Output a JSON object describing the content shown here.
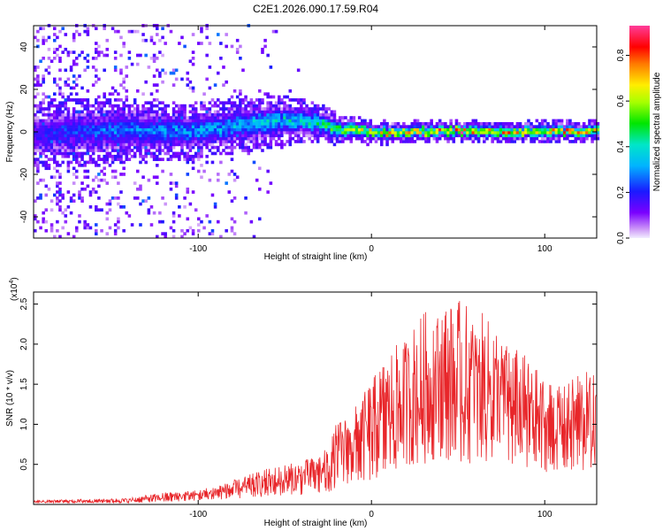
{
  "title": "C2E1.2026.090.17.59.R04",
  "chart_data": [
    {
      "type": "heatmap",
      "name": "spectrogram",
      "xlabel": "Height of straight line (km)",
      "ylabel": "Frequency (Hz)",
      "xlim": [
        -195,
        130
      ],
      "ylim": [
        -50,
        50
      ],
      "xticks": [
        -100,
        0,
        100
      ],
      "yticks": [
        -40,
        -20,
        0,
        20,
        40
      ],
      "xtick_labels": [
        "-100",
        "0",
        "100"
      ],
      "ytick_labels": [
        "-40",
        "-20",
        "0",
        "20",
        "40"
      ],
      "colorbar": {
        "label": "Normalized spectral amplitude",
        "range": [
          0.0,
          0.93
        ],
        "ticks": [
          0.0,
          0.2,
          0.4,
          0.6,
          0.8
        ],
        "tick_labels": [
          "0.0",
          "0.2",
          "0.4",
          "0.6",
          "0.8"
        ],
        "colormap": "rainbow (violet-blue-cyan-green-yellow-red-magenta)"
      },
      "ridge": {
        "description": "Signal concentrated near 0 Hz; broad noisy scatter at low heights, narrow bright ridge above ~-20 km",
        "x": [
          -195,
          -150,
          -100,
          -60,
          -40,
          -20,
          0,
          50,
          100,
          130
        ],
        "center_hz": [
          -2,
          0,
          0,
          4,
          5,
          1,
          -1,
          0,
          -1,
          0
        ],
        "halfwidth_hz": [
          6,
          6,
          5,
          5,
          4,
          3,
          2,
          2,
          2,
          2
        ],
        "peak_amplitude": [
          0.2,
          0.3,
          0.35,
          0.4,
          0.45,
          0.6,
          0.75,
          0.85,
          0.8,
          0.75
        ]
      }
    },
    {
      "type": "line",
      "name": "snr",
      "xlabel": "Height of straight line (km)",
      "ylabel": "SNR (10 * v/v)",
      "y_multiplier_label": "(x10^4)",
      "multiplier_base": "(x10",
      "multiplier_exp": "4",
      "multiplier_close": ")",
      "xlim": [
        -195,
        130
      ],
      "ylim": [
        0,
        2.65
      ],
      "xticks": [
        -100,
        0,
        100
      ],
      "yticks": [
        0.5,
        1.0,
        1.5,
        2.0,
        2.5
      ],
      "xtick_labels": [
        "-100",
        "0",
        "100"
      ],
      "ytick_labels": [
        "0.5",
        "1.0",
        "1.5",
        "2.0",
        "2.5"
      ],
      "color": "#e8262a",
      "envelope": {
        "x": [
          -195,
          -140,
          -120,
          -100,
          -80,
          -60,
          -40,
          -25,
          -20,
          -10,
          0,
          10,
          20,
          30,
          40,
          50,
          60,
          70,
          80,
          90,
          100,
          110,
          120,
          130
        ],
        "low": [
          0.02,
          0.02,
          0.03,
          0.05,
          0.07,
          0.1,
          0.12,
          0.15,
          0.2,
          0.3,
          0.3,
          0.4,
          0.5,
          0.5,
          0.6,
          0.5,
          0.5,
          0.55,
          0.5,
          0.4,
          0.4,
          0.45,
          0.4,
          0.45
        ],
        "high": [
          0.05,
          0.08,
          0.15,
          0.18,
          0.3,
          0.45,
          0.55,
          0.7,
          1.05,
          1.2,
          1.55,
          1.9,
          2.1,
          2.4,
          2.5,
          2.55,
          2.45,
          2.3,
          2.0,
          1.85,
          1.6,
          1.45,
          1.7,
          1.6
        ]
      }
    }
  ]
}
